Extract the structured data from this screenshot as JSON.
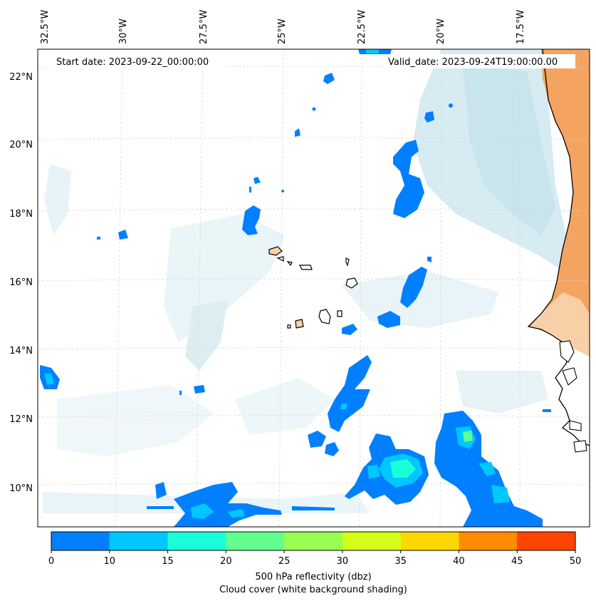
{
  "map": {
    "start_date_text": "Start date: 2023-09-22_00:00:00",
    "valid_date_text": "Valid_date: 2023-09-24T19:00:00.00",
    "lon_labels": [
      "32.5°W",
      "30°W",
      "27.5°W",
      "25°W",
      "22.5°W",
      "20°W",
      "17.5°W"
    ],
    "lat_labels": [
      "22°N",
      "20°N",
      "18°N",
      "16°N",
      "14°N",
      "12°N",
      "10°N"
    ],
    "colors": {
      "ocean": "#ffffff",
      "cloud_light": "#dbeef4",
      "cloud_mid": "#c5e3ec",
      "land_dust": "#f4a460",
      "land_dust_light": "#f8c8a0",
      "coast": "#000000",
      "grid": "#cfcfcf"
    }
  },
  "colorbar": {
    "ticks": [
      "0",
      "10",
      "15",
      "20",
      "25",
      "30",
      "35",
      "40",
      "45",
      "50"
    ],
    "colors": [
      "#0080ff",
      "#00c8ff",
      "#1affd8",
      "#60ff90",
      "#96ff50",
      "#d2ff1a",
      "#ffd700",
      "#ff8c00",
      "#ff4500"
    ],
    "label_line1": "500 hPa reflectivity (dbz)",
    "label_line2": "Cloud cover (white background shading)"
  }
}
